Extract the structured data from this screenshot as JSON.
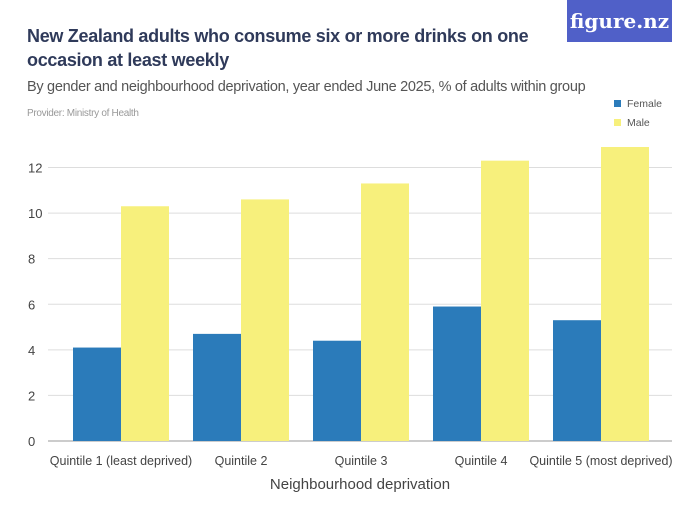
{
  "header": {
    "title": "New Zealand adults who consume six or more drinks on one occasion at least weekly",
    "subtitle": "By gender and neighbourhood deprivation, year ended June 2025, % of adults within group",
    "provider": "Provider: Ministry of Health",
    "logo": "figure.nz"
  },
  "chart_data": {
    "type": "bar",
    "title": "New Zealand adults who consume six or more drinks on one occasion at least weekly",
    "xlabel": "Neighbourhood deprivation",
    "ylabel": "",
    "categories": [
      "Quintile 1 (least deprived)",
      "Quintile 2",
      "Quintile 3",
      "Quintile 4",
      "Quintile 5 (most deprived)"
    ],
    "series": [
      {
        "name": "Female",
        "color": "#2b7bba",
        "values": [
          4.1,
          4.7,
          4.4,
          5.9,
          5.3
        ]
      },
      {
        "name": "Male",
        "color": "#f7f07c",
        "values": [
          10.3,
          10.6,
          11.3,
          12.3,
          12.9
        ]
      }
    ],
    "ylim": [
      0,
      12
    ],
    "yticks": [
      0,
      2,
      4,
      6,
      8,
      10,
      12
    ],
    "grid": true,
    "legend": "top-right"
  }
}
